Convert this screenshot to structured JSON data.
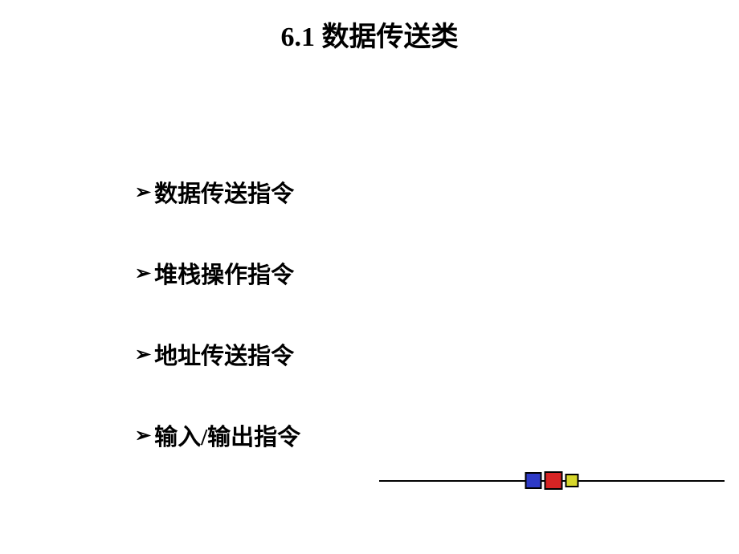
{
  "title": {
    "text": "6.1 数据传送类",
    "fontsize": 34,
    "color": "#000000"
  },
  "bullets": {
    "marker": "➢",
    "marker_fontsize": 24,
    "item_fontsize": 29,
    "item_color": "#000000",
    "line_spacing": 88,
    "items": [
      "数据传送指令",
      "堆栈操作指令",
      "地址传送指令",
      "输入/输出指令"
    ]
  },
  "decoration": {
    "line_color": "#000000",
    "squares": [
      {
        "color": "#2e3ac7",
        "size": 21
      },
      {
        "color": "#d82424",
        "size": 23
      },
      {
        "color": "#d6d62b",
        "size": 17
      }
    ]
  }
}
